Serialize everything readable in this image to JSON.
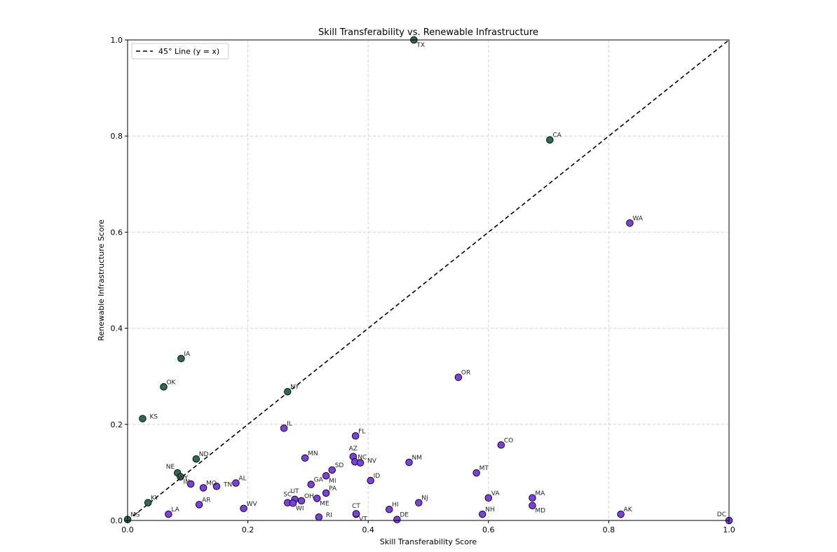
{
  "chart_data": {
    "type": "scatter",
    "title": "Skill Transferability vs. Renewable Infrastructure",
    "xlabel": "Skill Transferability Score",
    "ylabel": "Renewable Infrastructure Score",
    "xlim": [
      0,
      1
    ],
    "ylim": [
      0,
      1
    ],
    "xticks": [
      "0.0",
      "0.2",
      "0.4",
      "0.6",
      "0.8",
      "1.0"
    ],
    "yticks": [
      "0.0",
      "0.2",
      "0.4",
      "0.6",
      "0.8",
      "1.0"
    ],
    "grid": true,
    "legend": {
      "placement": "top-left",
      "entries": [
        {
          "label": "45° Line (y = x)",
          "style": "dashed",
          "color": "#000000"
        }
      ]
    },
    "colors": {
      "above_line": "#2e6b52",
      "below_line": "#7b3fe4",
      "edge": "#000000"
    },
    "points": [
      {
        "state": "TX",
        "x": 0.476,
        "y": 1.0,
        "group": "above",
        "label_pos": "br"
      },
      {
        "state": "CA",
        "x": 0.702,
        "y": 0.792,
        "group": "above",
        "label_pos": "tr"
      },
      {
        "state": "IA",
        "x": 0.089,
        "y": 0.337,
        "group": "above",
        "label_pos": "tr"
      },
      {
        "state": "OK",
        "x": 0.06,
        "y": 0.278,
        "group": "above",
        "label_pos": "tr"
      },
      {
        "state": "NY",
        "x": 0.266,
        "y": 0.268,
        "group": "above",
        "label_pos": "tr"
      },
      {
        "state": "KS",
        "x": 0.025,
        "y": 0.212,
        "group": "above",
        "label_pos": "r"
      },
      {
        "state": "ND",
        "x": 0.114,
        "y": 0.128,
        "group": "above",
        "label_pos": "tr"
      },
      {
        "state": "NE",
        "x": 0.083,
        "y": 0.099,
        "group": "above",
        "label_pos": "tl"
      },
      {
        "state": "IN",
        "x": 0.088,
        "y": 0.091,
        "group": "above",
        "label_pos": "br"
      },
      {
        "state": "KY",
        "x": 0.034,
        "y": 0.037,
        "group": "above",
        "label_pos": "tr"
      },
      {
        "state": "MS",
        "x": 0.0,
        "y": 0.002,
        "group": "above",
        "label_pos": "tr"
      },
      {
        "state": "WA",
        "x": 0.835,
        "y": 0.619,
        "group": "below",
        "label_pos": "tr"
      },
      {
        "state": "OR",
        "x": 0.55,
        "y": 0.298,
        "group": "below",
        "label_pos": "tr"
      },
      {
        "state": "IL",
        "x": 0.26,
        "y": 0.192,
        "group": "below",
        "label_pos": "tr"
      },
      {
        "state": "FL",
        "x": 0.379,
        "y": 0.176,
        "group": "below",
        "label_pos": "tr"
      },
      {
        "state": "CO",
        "x": 0.621,
        "y": 0.157,
        "group": "below",
        "label_pos": "tr"
      },
      {
        "state": "AZ",
        "x": 0.375,
        "y": 0.133,
        "group": "below",
        "label_pos": "t"
      },
      {
        "state": "MN",
        "x": 0.295,
        "y": 0.13,
        "group": "below",
        "label_pos": "tr"
      },
      {
        "state": "NC",
        "x": 0.378,
        "y": 0.122,
        "group": "below",
        "label_pos": "tr"
      },
      {
        "state": "NV",
        "x": 0.387,
        "y": 0.12,
        "group": "below",
        "label_pos": "r"
      },
      {
        "state": "NM",
        "x": 0.468,
        "y": 0.121,
        "group": "below",
        "label_pos": "tr"
      },
      {
        "state": "SD",
        "x": 0.34,
        "y": 0.105,
        "group": "below",
        "label_pos": "tr"
      },
      {
        "state": "MT",
        "x": 0.58,
        "y": 0.099,
        "group": "below",
        "label_pos": "tr"
      },
      {
        "state": "MI",
        "x": 0.33,
        "y": 0.093,
        "group": "below",
        "label_pos": "br"
      },
      {
        "state": "ID",
        "x": 0.404,
        "y": 0.083,
        "group": "below",
        "label_pos": "tr"
      },
      {
        "state": "AL",
        "x": 0.18,
        "y": 0.078,
        "group": "below",
        "label_pos": "tr"
      },
      {
        "state": "WY",
        "x": 0.105,
        "y": 0.076,
        "group": "below",
        "label_pos": "tl"
      },
      {
        "state": "GA",
        "x": 0.305,
        "y": 0.075,
        "group": "below",
        "label_pos": "tr"
      },
      {
        "state": "TN",
        "x": 0.148,
        "y": 0.071,
        "group": "below",
        "label_pos": "r"
      },
      {
        "state": "MO",
        "x": 0.126,
        "y": 0.068,
        "group": "below",
        "label_pos": "tr"
      },
      {
        "state": "PA",
        "x": 0.33,
        "y": 0.057,
        "group": "below",
        "label_pos": "tr"
      },
      {
        "state": "UT",
        "x": 0.278,
        "y": 0.044,
        "group": "below",
        "label_pos": "t"
      },
      {
        "state": "OH",
        "x": 0.289,
        "y": 0.041,
        "group": "below",
        "label_pos": "tr"
      },
      {
        "state": "ME",
        "x": 0.315,
        "y": 0.046,
        "group": "below",
        "label_pos": "br"
      },
      {
        "state": "VA",
        "x": 0.6,
        "y": 0.047,
        "group": "below",
        "label_pos": "tr"
      },
      {
        "state": "MA",
        "x": 0.673,
        "y": 0.047,
        "group": "below",
        "label_pos": "tr"
      },
      {
        "state": "SC",
        "x": 0.266,
        "y": 0.037,
        "group": "below",
        "label_pos": "t"
      },
      {
        "state": "WI",
        "x": 0.275,
        "y": 0.036,
        "group": "below",
        "label_pos": "br"
      },
      {
        "state": "NJ",
        "x": 0.484,
        "y": 0.037,
        "group": "below",
        "label_pos": "tr"
      },
      {
        "state": "AR",
        "x": 0.119,
        "y": 0.033,
        "group": "below",
        "label_pos": "tr"
      },
      {
        "state": "MD",
        "x": 0.673,
        "y": 0.031,
        "group": "below",
        "label_pos": "br"
      },
      {
        "state": "WV",
        "x": 0.193,
        "y": 0.025,
        "group": "below",
        "label_pos": "tr"
      },
      {
        "state": "HI",
        "x": 0.435,
        "y": 0.023,
        "group": "below",
        "label_pos": "tr"
      },
      {
        "state": "CT",
        "x": 0.38,
        "y": 0.013,
        "group": "below",
        "label_pos": "t"
      },
      {
        "state": "VT",
        "x": 0.38,
        "y": 0.014,
        "group": "below",
        "label_pos": "br"
      },
      {
        "state": "NH",
        "x": 0.59,
        "y": 0.013,
        "group": "below",
        "label_pos": "tr"
      },
      {
        "state": "AK",
        "x": 0.82,
        "y": 0.013,
        "group": "below",
        "label_pos": "tr"
      },
      {
        "state": "LA",
        "x": 0.068,
        "y": 0.013,
        "group": "below",
        "label_pos": "tr"
      },
      {
        "state": "RI",
        "x": 0.318,
        "y": 0.007,
        "group": "below",
        "label_pos": "r"
      },
      {
        "state": "DE",
        "x": 0.448,
        "y": 0.002,
        "group": "below",
        "label_pos": "tr"
      },
      {
        "state": "DC",
        "x": 1.0,
        "y": 0.0,
        "group": "below",
        "label_pos": "tl"
      }
    ]
  }
}
